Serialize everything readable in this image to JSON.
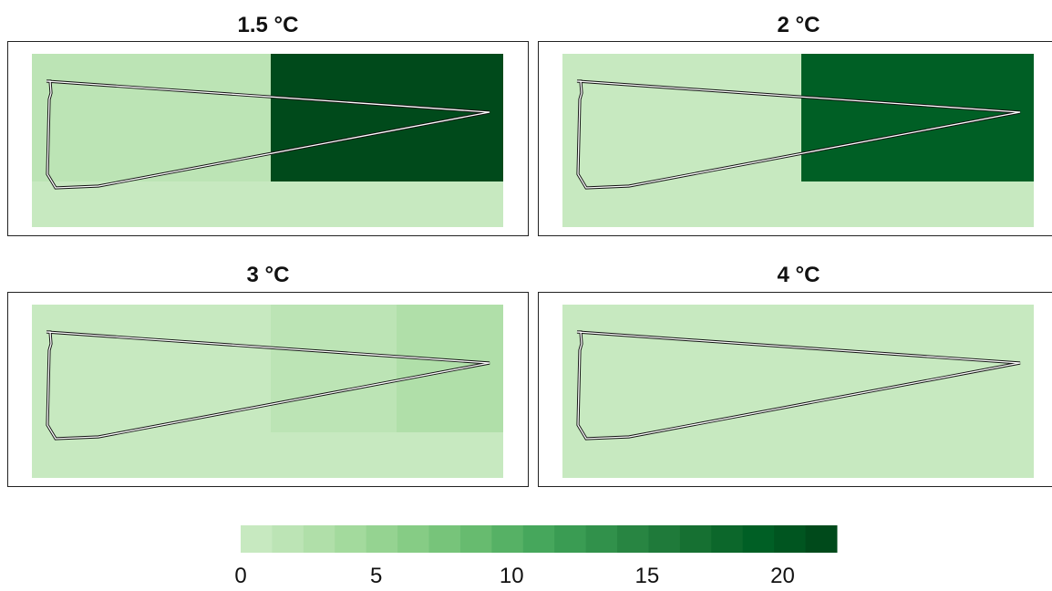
{
  "chart_data": [
    {
      "type": "heatmap",
      "title": "1.5 °C",
      "regions": [
        {
          "name": "west",
          "value": 1
        },
        {
          "name": "east",
          "value": 22
        },
        {
          "name": "south-strip",
          "value": 0
        }
      ]
    },
    {
      "type": "heatmap",
      "title": "2 °C",
      "regions": [
        {
          "name": "west",
          "value": 0
        },
        {
          "name": "east",
          "value": 20
        },
        {
          "name": "south-strip",
          "value": 0
        }
      ]
    },
    {
      "type": "heatmap",
      "title": "3 °C",
      "regions": [
        {
          "name": "west",
          "value": 0
        },
        {
          "name": "middle",
          "value": 1
        },
        {
          "name": "east",
          "value": 2
        },
        {
          "name": "south-strip",
          "value": 0
        }
      ]
    },
    {
      "type": "heatmap",
      "title": "4 °C",
      "regions": [
        {
          "name": "all",
          "value": 0
        }
      ]
    }
  ],
  "legend": {
    "min": 0,
    "max": 22,
    "ticks": [
      "0",
      "5",
      "10",
      "15",
      "20"
    ],
    "colors": [
      "#c7e9c0",
      "#bce4b5",
      "#b0dfa9",
      "#a3da9d",
      "#95d391",
      "#86cc85",
      "#77c47a",
      "#67bb6f",
      "#56b165",
      "#46a75c",
      "#3a9c53",
      "#31914b",
      "#288542",
      "#1f7a3a",
      "#167032",
      "#0c672b",
      "#005f25",
      "#005520",
      "#004a1b"
    ]
  }
}
